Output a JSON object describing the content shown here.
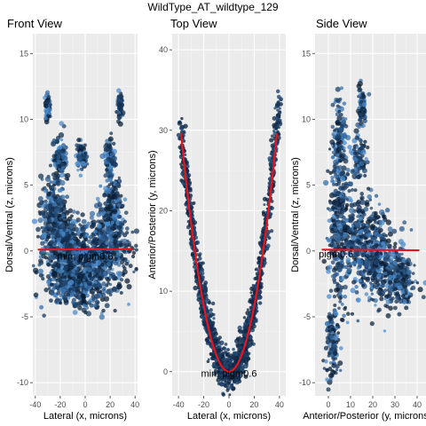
{
  "title": "WildType_AT_wildtype_129",
  "chart_data": [
    {
      "type": "scatter",
      "title": "Front View",
      "xlabel": "Lateral (x, microns)",
      "ylabel": "Dorsal/Ventral (z, microns)",
      "xlim": [
        -42,
        42
      ],
      "ylim": [
        -11,
        16.5
      ],
      "xticks": [
        -40,
        -20,
        0,
        20,
        40
      ],
      "yticks": [
        -10,
        -5,
        0,
        5,
        10,
        15
      ],
      "fit_line": [
        [
          -38,
          0.1
        ],
        [
          38,
          0.15
        ]
      ],
      "annotation": {
        "text": "min: pigm0.6",
        "x": 0,
        "y": -0.4
      },
      "clusters": [
        {
          "cx": -15,
          "cy": 0,
          "rx": 20,
          "ry": 2.5
        },
        {
          "cx": 15,
          "cy": 0,
          "rx": 20,
          "ry": 2.5
        },
        {
          "cx": -25,
          "cy": 3,
          "rx": 10,
          "ry": 2.5
        },
        {
          "cx": 22,
          "cy": 3,
          "rx": 8,
          "ry": 2.5
        },
        {
          "cx": -20,
          "cy": 7,
          "rx": 5,
          "ry": 1.5
        },
        {
          "cx": 20,
          "cy": 7,
          "rx": 4,
          "ry": 1.5
        },
        {
          "cx": -3,
          "cy": 7.2,
          "rx": 4,
          "ry": 1.0
        },
        {
          "cx": -30,
          "cy": 11,
          "rx": 2,
          "ry": 1.0
        },
        {
          "cx": 28,
          "cy": 11,
          "rx": 2,
          "ry": 1.0
        },
        {
          "cx": -5,
          "cy": -2.5,
          "rx": 25,
          "ry": 1.8
        }
      ]
    },
    {
      "type": "scatter",
      "title": "Top View",
      "xlabel": "Lateral (x, microns)",
      "ylabel": "Anterior/Posterior (y, microns)",
      "xlim": [
        -45,
        45
      ],
      "ylim": [
        -3,
        42
      ],
      "xticks": [
        -40,
        -20,
        0,
        20,
        40
      ],
      "yticks": [
        0,
        10,
        20,
        30,
        40
      ],
      "fit_curve": {
        "a": 0.0205,
        "x_from": -38,
        "x_to": 38
      },
      "annotation": {
        "text": "min: pigm0.6",
        "x": 0,
        "y": -0.2
      },
      "band": {
        "a": 0.021,
        "x_from": -38,
        "x_to": 40,
        "half_width": 2.2
      }
    },
    {
      "type": "scatter",
      "title": "Side View",
      "xlabel": "Anterior/Posterior (y, microns",
      "ylabel": "Dorsal/Ventral (z, microns)",
      "xlim": [
        -6,
        44
      ],
      "ylim": [
        -11,
        16.5
      ],
      "xticks": [
        0,
        10,
        20,
        30,
        40
      ],
      "yticks": [
        -10,
        -5,
        0,
        5,
        10,
        15
      ],
      "fit_line": [
        [
          -3,
          0.1
        ],
        [
          41,
          0.05
        ]
      ],
      "annotation": {
        "text": "pigm0.6",
        "x": 3.5,
        "y": -0.2
      },
      "clusters": [
        {
          "cx": 5,
          "cy": 2,
          "rx": 5,
          "ry": 6
        },
        {
          "cx": 15,
          "cy": 0.5,
          "rx": 10,
          "ry": 3.5
        },
        {
          "cx": 25,
          "cy": -1,
          "rx": 10,
          "ry": 3.0
        },
        {
          "cx": 33,
          "cy": -2.5,
          "rx": 6,
          "ry": 2.0
        },
        {
          "cx": 5,
          "cy": 9,
          "rx": 3,
          "ry": 3
        },
        {
          "cx": 14,
          "cy": 7,
          "rx": 3,
          "ry": 2
        },
        {
          "cx": 2,
          "cy": -7,
          "rx": 3,
          "ry": 3
        },
        {
          "cx": 15,
          "cy": 11,
          "rx": 2,
          "ry": 1.5
        }
      ]
    }
  ]
}
